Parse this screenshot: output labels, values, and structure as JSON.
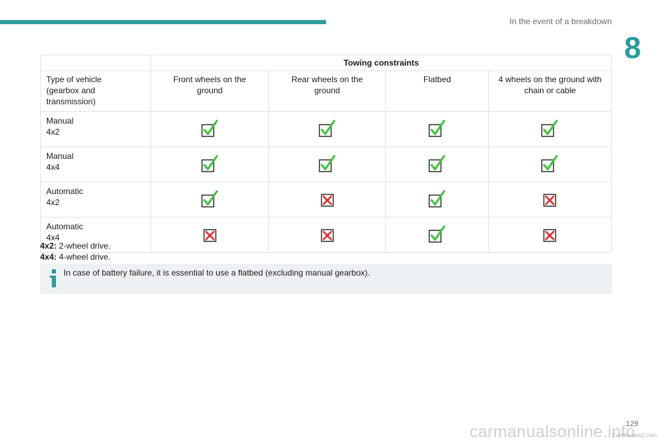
{
  "header": {
    "section_title": "In the event of a breakdown",
    "chapter_number": "8"
  },
  "table": {
    "group_header": "Towing constraints",
    "columns": [
      "Type of vehicle (gearbox and transmission)",
      "Front wheels on the ground",
      "Rear wheels on the ground",
      "Flatbed",
      "4 wheels on the ground with chain or cable"
    ],
    "rows": [
      {
        "gearbox": "Manual",
        "drive": "4x2",
        "marks": [
          "check",
          "check",
          "check",
          "check"
        ]
      },
      {
        "gearbox": "Manual",
        "drive": "4x4",
        "marks": [
          "check",
          "check",
          "check",
          "check"
        ]
      },
      {
        "gearbox": "Automatic",
        "drive": "4x2",
        "marks": [
          "check",
          "cross",
          "check",
          "cross"
        ]
      },
      {
        "gearbox": "Automatic",
        "drive": "4x4",
        "marks": [
          "cross",
          "cross",
          "check",
          "cross"
        ]
      }
    ]
  },
  "footnotes": [
    {
      "term": "4x2:",
      "text": " 2-wheel drive."
    },
    {
      "term": "4x4:",
      "text": " 4-wheel drive."
    }
  ],
  "info": {
    "icon": "info-icon",
    "text": "In case of battery failure, it is essential to use a flatbed (excluding manual gearbox)."
  },
  "footer": {
    "page_number": "129",
    "watermark": "carmanualsonline.info",
    "watermark_small": "CarManuals2.com"
  },
  "colors": {
    "accent": "#2a9d9c",
    "check": "#3cc43c",
    "cross": "#e0282e"
  }
}
